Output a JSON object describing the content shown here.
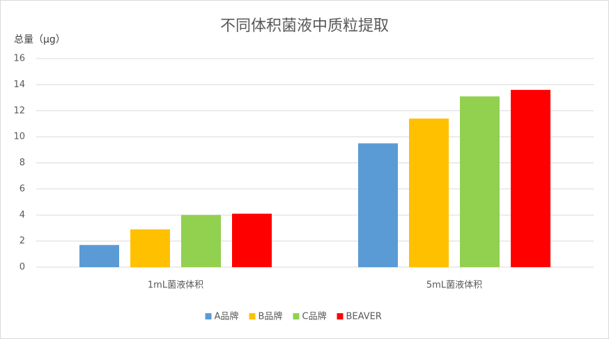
{
  "chart_data": {
    "type": "bar",
    "title": "不同体积菌液中质粒提取",
    "y_label": "总量（μg）",
    "categories": [
      "1mL菌液体积",
      "5mL菌液体积"
    ],
    "series": [
      {
        "name": "A品牌",
        "color": "#5b9bd5",
        "values": [
          1.7,
          9.5
        ]
      },
      {
        "name": "B品牌",
        "color": "#ffc000",
        "values": [
          2.9,
          11.4
        ]
      },
      {
        "name": "C品牌",
        "color": "#92d050",
        "values": [
          4.0,
          13.1
        ]
      },
      {
        "name": "BEAVER",
        "color": "#ff0000",
        "values": [
          4.1,
          13.6
        ]
      }
    ],
    "ylim": [
      0,
      16
    ],
    "yticks": [
      0,
      2,
      4,
      6,
      8,
      10,
      12,
      14,
      16
    ],
    "grid": true,
    "legend": "bottom"
  }
}
